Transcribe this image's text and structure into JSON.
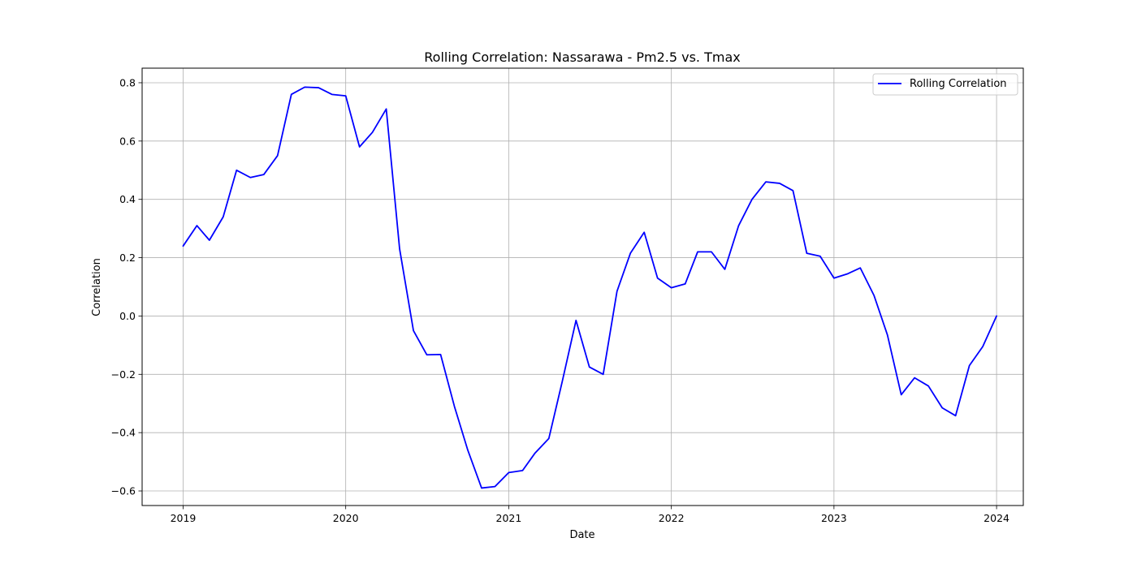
{
  "chart_data": {
    "type": "line",
    "title": "Rolling Correlation: Nassarawa - Pm2.5 vs. Tmax",
    "xlabel": "Date",
    "ylabel": "Correlation",
    "grid": true,
    "legend_position": "top-right",
    "xlim": [
      "2018-10-01",
      "2024-03-01"
    ],
    "ylim": [
      -0.65,
      0.85
    ],
    "x_ticks": [
      "2019-01-01",
      "2020-01-01",
      "2021-01-01",
      "2022-01-01",
      "2023-01-01",
      "2024-01-01"
    ],
    "x_tick_labels": [
      "2019",
      "2020",
      "2021",
      "2022",
      "2023",
      "2024"
    ],
    "y_ticks": [
      -0.6,
      -0.4,
      -0.2,
      0.0,
      0.2,
      0.4,
      0.6,
      0.8
    ],
    "y_tick_labels": [
      "−0.6",
      "−0.4",
      "−0.2",
      "0.0",
      "0.2",
      "0.4",
      "0.6",
      "0.8"
    ],
    "series": [
      {
        "name": "Rolling Correlation",
        "color": "#0000ff",
        "x": [
          "2019-01-01",
          "2019-02-01",
          "2019-03-01",
          "2019-04-01",
          "2019-05-01",
          "2019-06-01",
          "2019-07-01",
          "2019-08-01",
          "2019-09-01",
          "2019-10-01",
          "2019-11-01",
          "2019-12-01",
          "2020-01-01",
          "2020-02-01",
          "2020-03-01",
          "2020-04-01",
          "2020-05-01",
          "2020-06-01",
          "2020-07-01",
          "2020-08-01",
          "2020-09-01",
          "2020-10-01",
          "2020-11-01",
          "2020-12-01",
          "2021-01-01",
          "2021-02-01",
          "2021-03-01",
          "2021-04-01",
          "2021-05-01",
          "2021-06-01",
          "2021-07-01",
          "2021-08-01",
          "2021-09-01",
          "2021-10-01",
          "2021-11-01",
          "2021-12-01",
          "2022-01-01",
          "2022-02-01",
          "2022-03-01",
          "2022-04-01",
          "2022-05-01",
          "2022-06-01",
          "2022-07-01",
          "2022-08-01",
          "2022-09-01",
          "2022-10-01",
          "2022-11-01",
          "2022-12-01",
          "2023-01-01",
          "2023-02-01",
          "2023-03-01",
          "2023-04-01",
          "2023-05-01",
          "2023-06-01",
          "2023-07-01",
          "2023-08-01",
          "2023-09-01",
          "2023-10-01",
          "2023-11-01",
          "2023-12-01",
          "2024-01-01"
        ],
        "values": [
          0.24,
          0.31,
          0.26,
          0.34,
          0.5,
          0.475,
          0.485,
          0.55,
          0.76,
          0.785,
          0.783,
          0.76,
          0.755,
          0.58,
          0.63,
          0.71,
          0.23,
          -0.05,
          -0.133,
          -0.132,
          -0.31,
          -0.46,
          -0.59,
          -0.585,
          -0.537,
          -0.53,
          -0.47,
          -0.42,
          -0.225,
          -0.015,
          -0.175,
          -0.2,
          0.085,
          0.215,
          0.287,
          0.13,
          0.097,
          0.11,
          0.22,
          0.22,
          0.16,
          0.31,
          0.4,
          0.46,
          0.455,
          0.43,
          0.215,
          0.205,
          0.13,
          0.145,
          0.165,
          0.07,
          -0.065,
          -0.27,
          -0.212,
          -0.24,
          -0.315,
          -0.342,
          -0.17,
          -0.105,
          0.0
        ]
      }
    ]
  }
}
